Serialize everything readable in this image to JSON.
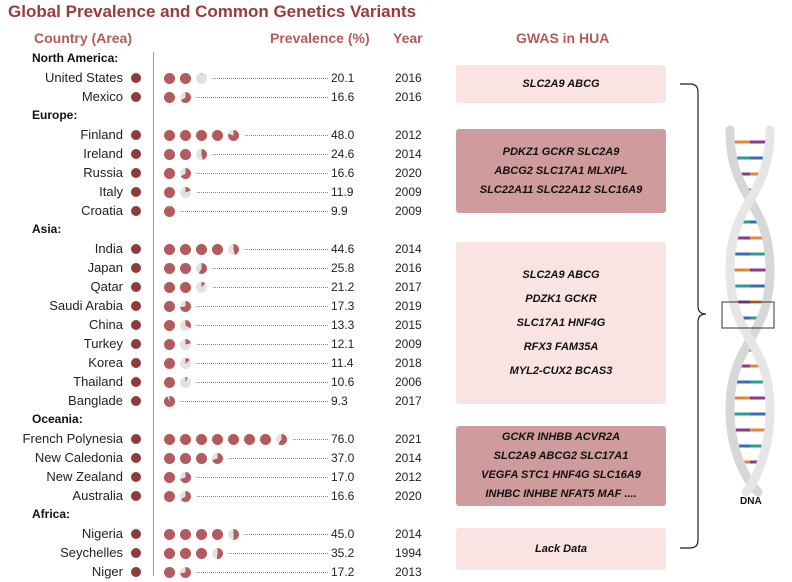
{
  "title": "Global Prevalence and  Common Genetics Variants",
  "headers": {
    "country": "Country (Area)",
    "prevalence": "Prevalence (%)",
    "year": "Year",
    "gwas": "GWAS in HUA"
  },
  "colors": {
    "title": "#9c3a3c",
    "header": "#b65a5c",
    "dot": "#8f3a3c",
    "pie_fill": "#b35a5d",
    "pie_empty": "#e2e2e2",
    "box_light": "#f9e3e3",
    "box_dark": "#cf9b9c"
  },
  "rows": [
    {
      "kind": "region",
      "label": "North America:"
    },
    {
      "kind": "country",
      "country": "United States",
      "prevalence": "20.1",
      "year": "2016"
    },
    {
      "kind": "country",
      "country": "Mexico",
      "prevalence": "16.6",
      "year": "2016"
    },
    {
      "kind": "region",
      "label": "Europe:"
    },
    {
      "kind": "country",
      "country": "Finland",
      "prevalence": "48.0",
      "year": "2012"
    },
    {
      "kind": "country",
      "country": "Ireland",
      "prevalence": "24.6",
      "year": "2014"
    },
    {
      "kind": "country",
      "country": "Russia",
      "prevalence": "16.6",
      "year": "2020"
    },
    {
      "kind": "country",
      "country": "Italy",
      "prevalence": "11.9",
      "year": "2009"
    },
    {
      "kind": "country",
      "country": "Croatia",
      "prevalence": "9.9",
      "year": "2009"
    },
    {
      "kind": "region",
      "label": "Asia:"
    },
    {
      "kind": "country",
      "country": "India",
      "prevalence": "44.6",
      "year": "2014"
    },
    {
      "kind": "country",
      "country": "Japan",
      "prevalence": "25.8",
      "year": "2016"
    },
    {
      "kind": "country",
      "country": "Qatar",
      "prevalence": "21.2",
      "year": "2017"
    },
    {
      "kind": "country",
      "country": "Saudi Arabia",
      "prevalence": "17.3",
      "year": "2019"
    },
    {
      "kind": "country",
      "country": "China",
      "prevalence": "13.3",
      "year": "2015"
    },
    {
      "kind": "country",
      "country": "Turkey",
      "prevalence": "12.1",
      "year": "2009"
    },
    {
      "kind": "country",
      "country": "Korea",
      "prevalence": "11.4",
      "year": "2018"
    },
    {
      "kind": "country",
      "country": "Thailand",
      "prevalence": "10.6",
      "year": "2006"
    },
    {
      "kind": "country",
      "country": "Banglade",
      "prevalence": "9.3",
      "year": "2017"
    },
    {
      "kind": "region",
      "label": "Oceania:"
    },
    {
      "kind": "country",
      "country": "French Polynesia",
      "prevalence": "76.0",
      "year": "2021"
    },
    {
      "kind": "country",
      "country": "New Caledonia",
      "prevalence": "37.0",
      "year": "2014"
    },
    {
      "kind": "country",
      "country": "New Zealand",
      "prevalence": "17.0",
      "year": "2012"
    },
    {
      "kind": "country",
      "country": "Australia",
      "prevalence": "16.6",
      "year": "2020"
    },
    {
      "kind": "region",
      "label": "Africa:"
    },
    {
      "kind": "country",
      "country": "Nigeria",
      "prevalence": "45.0",
      "year": "2014"
    },
    {
      "kind": "country",
      "country": "Seychelles",
      "prevalence": "35.2",
      "year": "1994"
    },
    {
      "kind": "country",
      "country": "Niger",
      "prevalence": "17.2",
      "year": "2013"
    }
  ],
  "gwas": [
    {
      "lines": [
        "SLC2A9  ABCG"
      ]
    },
    {
      "lines": [
        "PDKZ1  GCKR  SLC2A9",
        "ABCG2  SLC17A1  MLXIPL",
        "SLC22A11  SLC22A12  SLC16A9"
      ]
    },
    {
      "lines": [
        "SLC2A9  ABCG",
        "PDZK1  GCKR",
        "SLC17A1  HNF4G",
        "RFX3  FAM35A",
        "MYL2-CUX2  BCAS3"
      ]
    },
    {
      "lines": [
        "GCKR  INHBB  ACVR2A",
        "SLC2A9  ABCG2  SLC17A1",
        "VEGFA  STC1  HNF4G  SLC16A9",
        "INHBC  INHBE  NFAT5  MAF  ...."
      ]
    },
    {
      "lines": [
        "Lack Data"
      ]
    }
  ],
  "dna_label": "DNA"
}
